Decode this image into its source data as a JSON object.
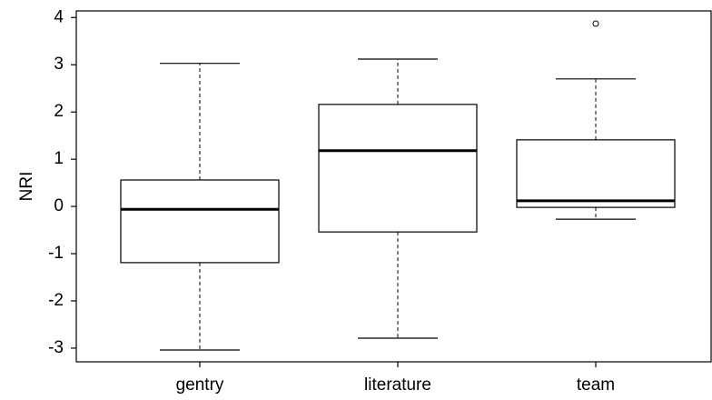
{
  "chart_data": {
    "type": "box",
    "categories": [
      "gentry",
      "literature",
      "team"
    ],
    "whisker_low": [
      -3.04,
      -2.79,
      -0.27
    ],
    "q1": [
      -1.19,
      -0.54,
      -0.02
    ],
    "median": [
      -0.06,
      1.18,
      0.12
    ],
    "q3": [
      0.56,
      2.16,
      1.41
    ],
    "whisker_high": [
      3.03,
      3.12,
      2.7
    ],
    "outliers": [
      [],
      [],
      [
        3.87
      ]
    ],
    "ylabel": "NRI",
    "ylim": [
      -3.29,
      4.14
    ],
    "yticks": [
      -3,
      -2,
      -1,
      0,
      1,
      2,
      3,
      4
    ],
    "color": "#000000"
  }
}
